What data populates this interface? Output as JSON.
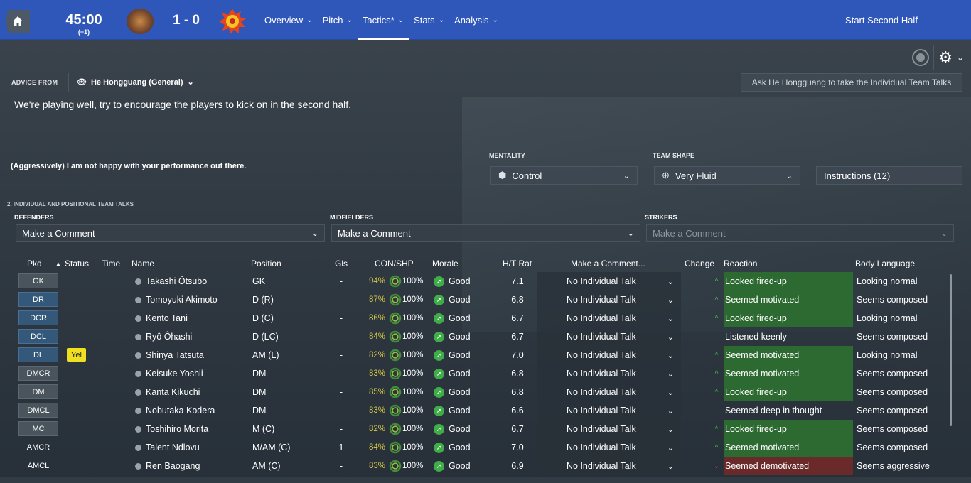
{
  "header": {
    "time": "45:00",
    "added_time": "(+1)",
    "score": "1 - 0",
    "nav": [
      {
        "label": "Overview"
      },
      {
        "label": "Pitch"
      },
      {
        "label": "Tactics*"
      },
      {
        "label": "Stats"
      },
      {
        "label": "Analysis"
      }
    ],
    "start_button": "Start Second Half"
  },
  "advice": {
    "label": "ADVICE FROM",
    "advisor": "He Hongguang (General)",
    "ask_button": "Ask He Hongguang to take the Individual Team Talks",
    "text": "We're playing well, try to encourage the players to kick on in the second half."
  },
  "team_talk": {
    "text": "(Aggressively) I am not happy with your performance out there."
  },
  "tactics": {
    "mentality_label": "MENTALITY",
    "mentality_value": "Control",
    "shape_label": "TEAM SHAPE",
    "shape_value": "Very Fluid",
    "instructions": "Instructions (12)"
  },
  "positional": {
    "section_title": "2. INDIVIDUAL AND POSITIONAL TEAM TALKS",
    "groups": [
      {
        "label": "DEFENDERS",
        "value": "Make a Comment"
      },
      {
        "label": "MIDFIELDERS",
        "value": "Make a Comment"
      },
      {
        "label": "STRIKERS",
        "value": "Make a Comment"
      }
    ]
  },
  "table": {
    "headers": {
      "pkd": "Pkd",
      "status": "Status",
      "time": "Time",
      "name": "Name",
      "position": "Position",
      "gls": "Gls",
      "con_shp": "CON/SHP",
      "morale": "Morale",
      "ht_rat": "H/T Rat",
      "comment": "Make a Comment...",
      "change": "Change",
      "reaction": "Reaction",
      "body": "Body Language"
    },
    "rows": [
      {
        "pkd": "GK",
        "status": "",
        "name": "Takashi Ôtsubo",
        "pos": "GK",
        "gls": "-",
        "con": "94%",
        "shp": "100%",
        "morale": "Good",
        "rat": "7.1",
        "talk": "No Individual Talk",
        "change": "^",
        "reaction": "Looked fired-up",
        "body": "Looking normal"
      },
      {
        "pkd": "DR",
        "status": "",
        "name": "Tomoyuki Akimoto",
        "pos": "D (R)",
        "gls": "-",
        "con": "87%",
        "shp": "100%",
        "morale": "Good",
        "rat": "6.8",
        "talk": "No Individual Talk",
        "change": "^",
        "reaction": "Seemed motivated",
        "body": "Seems composed"
      },
      {
        "pkd": "DCR",
        "status": "",
        "name": "Kento Tani",
        "pos": "D (C)",
        "gls": "-",
        "con": "86%",
        "shp": "100%",
        "morale": "Good",
        "rat": "6.7",
        "talk": "No Individual Talk",
        "change": "^",
        "reaction": "Looked fired-up",
        "body": "Looking normal"
      },
      {
        "pkd": "DCL",
        "status": "",
        "name": "Ryô Ôhashi",
        "pos": "D (LC)",
        "gls": "-",
        "con": "84%",
        "shp": "100%",
        "morale": "Good",
        "rat": "6.7",
        "talk": "No Individual Talk",
        "change": "",
        "reaction": "Listened keenly",
        "body": "Seems composed"
      },
      {
        "pkd": "DL",
        "status": "Yel",
        "name": "Shinya Tatsuta",
        "pos": "AM (L)",
        "gls": "-",
        "con": "82%",
        "shp": "100%",
        "morale": "Good",
        "rat": "7.0",
        "talk": "No Individual Talk",
        "change": "^",
        "reaction": "Seemed motivated",
        "body": "Looking normal"
      },
      {
        "pkd": "DMCR",
        "status": "",
        "name": "Keisuke Yoshii",
        "pos": "DM",
        "gls": "-",
        "con": "83%",
        "shp": "100%",
        "morale": "Good",
        "rat": "6.8",
        "talk": "No Individual Talk",
        "change": "^",
        "reaction": "Seemed motivated",
        "body": "Seems composed"
      },
      {
        "pkd": "DM",
        "status": "",
        "name": "Kanta Kikuchi",
        "pos": "DM",
        "gls": "-",
        "con": "85%",
        "shp": "100%",
        "morale": "Good",
        "rat": "6.8",
        "talk": "No Individual Talk",
        "change": "^",
        "reaction": "Looked fired-up",
        "body": "Seems composed"
      },
      {
        "pkd": "DMCL",
        "status": "",
        "name": "Nobutaka Kodera",
        "pos": "DM",
        "gls": "-",
        "con": "83%",
        "shp": "100%",
        "morale": "Good",
        "rat": "6.6",
        "talk": "No Individual Talk",
        "change": "",
        "reaction": "Seemed deep in thought",
        "body": "Seems composed"
      },
      {
        "pkd": "MC",
        "status": "",
        "name": "Toshihiro Morita",
        "pos": "M (C)",
        "gls": "-",
        "con": "82%",
        "shp": "100%",
        "morale": "Good",
        "rat": "6.7",
        "talk": "No Individual Talk",
        "change": "^",
        "reaction": "Looked fired-up",
        "body": "Seems composed"
      },
      {
        "pkd": "AMCR",
        "status": "",
        "name": "Talent Ndlovu",
        "pos": "M/AM (C)",
        "gls": "1",
        "con": "84%",
        "shp": "100%",
        "morale": "Good",
        "rat": "7.0",
        "talk": "No Individual Talk",
        "change": "^",
        "reaction": "Seemed motivated",
        "body": "Seems composed"
      },
      {
        "pkd": "AMCL",
        "status": "",
        "name": "Ren Baogang",
        "pos": "AM (C)",
        "gls": "-",
        "con": "83%",
        "shp": "100%",
        "morale": "Good",
        "rat": "6.9",
        "talk": "No Individual Talk",
        "change": "v",
        "reaction": "Seemed demotivated",
        "body": "Seems aggressive"
      }
    ]
  },
  "colors": {
    "topbar": "#2f56b9",
    "reaction_positive": "#2d6a31",
    "reaction_negative": "#6b2a2a",
    "condition_text": "#d9cc47",
    "yellow_card": "#f0df20"
  }
}
